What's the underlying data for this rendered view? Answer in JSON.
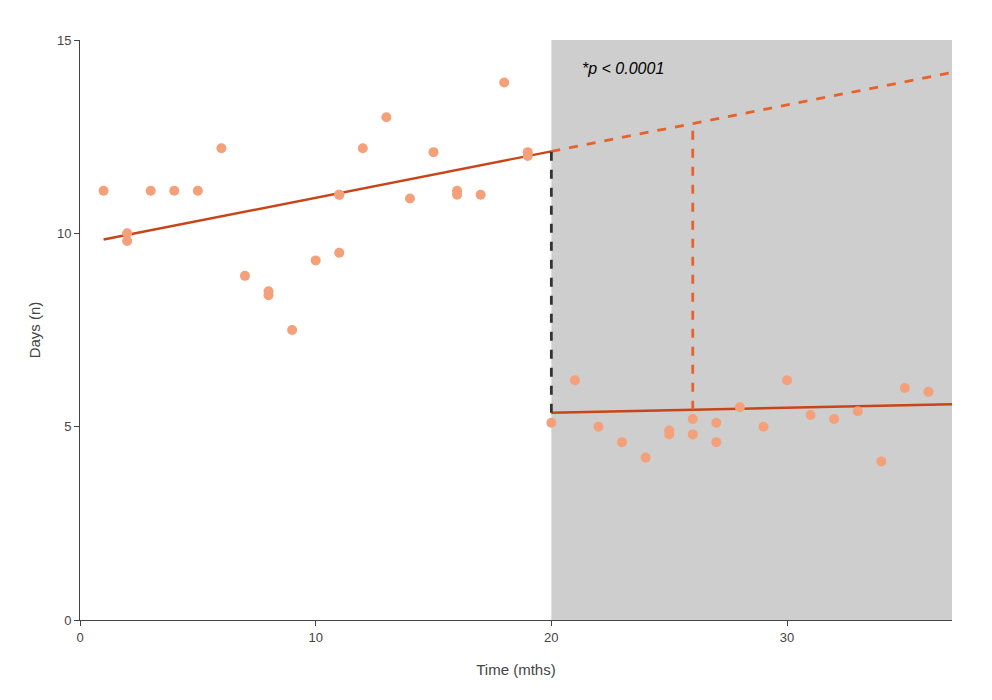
{
  "chart_data": {
    "type": "scatter",
    "xlabel": "Time (mths)",
    "ylabel": "Days (n)",
    "xlim": [
      0,
      37
    ],
    "ylim": [
      0,
      15
    ],
    "xticks": [
      0,
      10,
      20,
      30
    ],
    "yticks": [
      0,
      5,
      10,
      15
    ],
    "grid": false,
    "annotations": [
      {
        "text": "*p < 0.0001",
        "x": 21.2,
        "y": 14.0
      }
    ],
    "series": [
      {
        "type": "span",
        "x": [
          20,
          38
        ],
        "color": "#CECECE"
      },
      {
        "type": "line",
        "x": [
          1,
          20
        ],
        "values": [
          9.84,
          12.12
        ],
        "color": "#C8451A",
        "line_style": "solid"
      },
      {
        "type": "line",
        "x": [
          20,
          37
        ],
        "values": [
          5.36,
          5.581
        ],
        "color": "#C8451A",
        "line_style": "solid"
      },
      {
        "type": "line",
        "x": [
          20,
          37
        ],
        "values": [
          12.12,
          14.16
        ],
        "color": "#E8622A",
        "line_style": "dashed"
      },
      {
        "type": "line",
        "x": [
          20,
          20
        ],
        "values": [
          5.36,
          12.12
        ],
        "color": "#333333",
        "line_style": "dashed"
      },
      {
        "type": "line",
        "x": [
          26,
          26
        ],
        "values": [
          5.438,
          12.84
        ],
        "color": "#E8622A",
        "line_style": "dashed"
      },
      {
        "type": "scatter",
        "marker": "circle",
        "color": "#F4A07A",
        "x": [
          1,
          2,
          2,
          3,
          4,
          5,
          6,
          7,
          8,
          8,
          9,
          10,
          11,
          11,
          11,
          12,
          13,
          14,
          15,
          16,
          16,
          17,
          18,
          19,
          19
        ],
        "values": [
          11.1,
          9.8,
          10.0,
          11.1,
          11.1,
          11.1,
          12.2,
          8.9,
          8.4,
          8.5,
          7.5,
          9.3,
          9.5,
          11.0,
          11.0,
          12.2,
          13.0,
          10.9,
          12.1,
          11.1,
          11.0,
          11.0,
          13.9,
          12.1,
          12.0
        ]
      },
      {
        "type": "scatter",
        "marker": "circle",
        "color": "#F4A07A",
        "x": [
          20,
          21,
          22,
          23,
          24,
          25,
          25,
          26,
          26,
          27,
          27,
          28,
          29,
          30,
          31,
          32,
          33,
          34,
          35,
          36
        ],
        "values": [
          5.1,
          6.2,
          5.0,
          4.6,
          4.2,
          4.8,
          4.9,
          5.2,
          4.8,
          5.1,
          4.6,
          5.5,
          5.0,
          6.2,
          5.3,
          5.2,
          5.4,
          4.1,
          6.0,
          5.9
        ]
      }
    ]
  }
}
